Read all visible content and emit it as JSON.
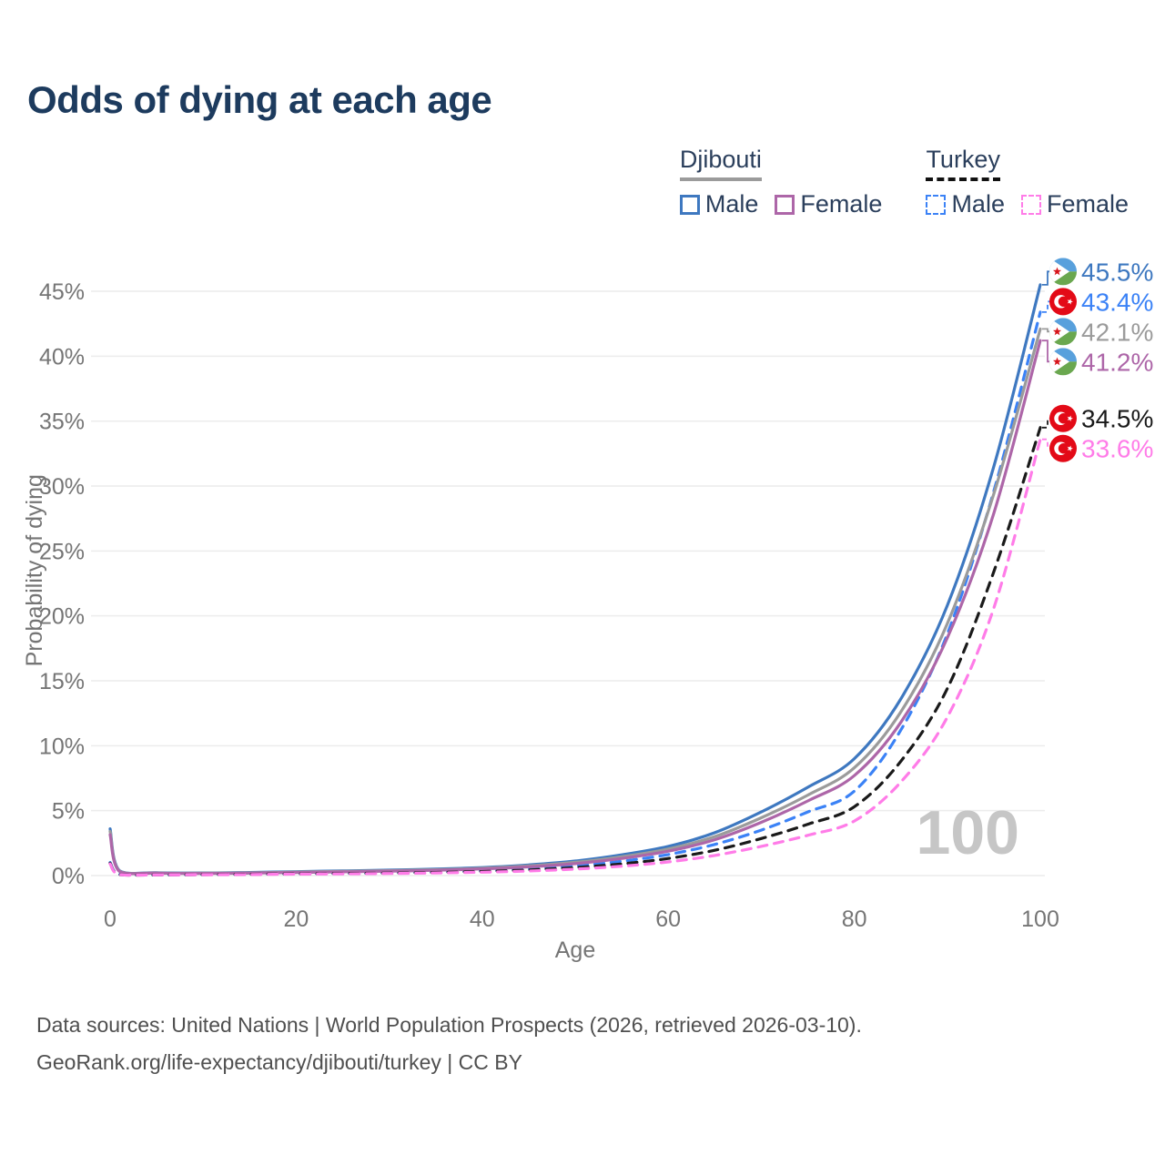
{
  "header": {
    "title": "Odds of dying at each age"
  },
  "watermark": "100",
  "legend": {
    "groups": [
      {
        "name": "Djibouti",
        "line_style": "solid",
        "underline_color": "#9b9b9b",
        "items": [
          {
            "label": "Male",
            "color": "#3e78c0",
            "dashed": false
          },
          {
            "label": "Female",
            "color": "#ad66a8",
            "dashed": false
          }
        ]
      },
      {
        "name": "Turkey",
        "line_style": "dashed",
        "underline_color": "#111111",
        "items": [
          {
            "label": "Male",
            "color": "#3b82f6",
            "dashed": true
          },
          {
            "label": "Female",
            "color": "#ff7ce8",
            "dashed": true
          }
        ]
      }
    ]
  },
  "chart_data": {
    "type": "line",
    "title": "Odds of dying at each age",
    "xlabel": "Age",
    "ylabel": "Probability of dying",
    "xlim": [
      0,
      100
    ],
    "ylim": [
      0,
      47
    ],
    "x_ticks": [
      0,
      20,
      40,
      60,
      80,
      100
    ],
    "y_tick_values": [
      0,
      5,
      10,
      15,
      20,
      25,
      30,
      35,
      40,
      45
    ],
    "y_tick_labels": [
      "0%",
      "5%",
      "10%",
      "15%",
      "20%",
      "25%",
      "30%",
      "35%",
      "40%",
      "45%"
    ],
    "grid": true,
    "legend_position": "top-right",
    "x": [
      0,
      1,
      5,
      10,
      15,
      20,
      25,
      30,
      35,
      40,
      45,
      50,
      55,
      60,
      65,
      70,
      75,
      80,
      85,
      90,
      95,
      100
    ],
    "series": [
      {
        "name": "Djibouti Male",
        "country": "Djibouti",
        "sex": "Male",
        "color": "#3e78c0",
        "dash": "solid",
        "flag": "djibouti",
        "end_label": "45.5%",
        "end_value": 45.5,
        "values": [
          3.6,
          0.38,
          0.22,
          0.2,
          0.24,
          0.3,
          0.36,
          0.42,
          0.5,
          0.62,
          0.82,
          1.12,
          1.6,
          2.25,
          3.3,
          4.9,
          6.8,
          9.0,
          13.6,
          20.8,
          31.5,
          45.5
        ]
      },
      {
        "name": "Turkey Male",
        "country": "Turkey",
        "sex": "Male",
        "color": "#3b82f6",
        "dash": "dashed",
        "flag": "turkey",
        "end_label": "43.4%",
        "end_value": 43.4,
        "values": [
          1.0,
          0.09,
          0.06,
          0.08,
          0.12,
          0.15,
          0.18,
          0.22,
          0.28,
          0.37,
          0.52,
          0.75,
          1.1,
          1.62,
          2.4,
          3.5,
          4.9,
          6.5,
          11.2,
          18.6,
          29.6,
          43.4
        ]
      },
      {
        "name": "Djibouti Both sexes",
        "country": "Djibouti",
        "sex": "Both",
        "color": "#9b9b9b",
        "dash": "solid",
        "flag": "djibouti",
        "end_label": "42.1%",
        "end_value": 42.1,
        "values": [
          3.4,
          0.35,
          0.2,
          0.18,
          0.21,
          0.27,
          0.32,
          0.38,
          0.45,
          0.56,
          0.74,
          1.02,
          1.45,
          2.05,
          3.0,
          4.45,
          6.2,
          8.3,
          12.6,
          19.4,
          29.4,
          42.1
        ]
      },
      {
        "name": "Djibouti Female",
        "country": "Djibouti",
        "sex": "Female",
        "color": "#ad66a8",
        "dash": "solid",
        "flag": "djibouti",
        "end_label": "41.2%",
        "end_value": 41.2,
        "values": [
          3.15,
          0.32,
          0.19,
          0.16,
          0.19,
          0.24,
          0.29,
          0.34,
          0.41,
          0.51,
          0.67,
          0.92,
          1.32,
          1.88,
          2.76,
          4.1,
          5.75,
          7.7,
          11.8,
          18.3,
          27.9,
          41.2
        ]
      },
      {
        "name": "Turkey Both sexes",
        "country": "Turkey",
        "sex": "Both",
        "color": "#1a1a1a",
        "dash": "dashed",
        "flag": "turkey",
        "end_label": "34.5%",
        "end_value": 34.5,
        "values": [
          0.95,
          0.08,
          0.05,
          0.07,
          0.1,
          0.13,
          0.16,
          0.19,
          0.24,
          0.31,
          0.43,
          0.62,
          0.9,
          1.32,
          1.95,
          2.85,
          3.95,
          5.3,
          8.8,
          14.4,
          23.4,
          34.5
        ]
      },
      {
        "name": "Turkey Female",
        "country": "Turkey",
        "sex": "Female",
        "color": "#ff7ce8",
        "dash": "dashed",
        "flag": "turkey",
        "end_label": "33.6%",
        "end_value": 33.6,
        "values": [
          0.9,
          0.07,
          0.05,
          0.06,
          0.08,
          0.11,
          0.13,
          0.16,
          0.2,
          0.26,
          0.35,
          0.5,
          0.72,
          1.05,
          1.55,
          2.25,
          3.1,
          4.2,
          7.2,
          12.2,
          20.6,
          33.6
        ]
      }
    ],
    "flag_colors": {
      "djibouti_blue": "#58a0dc",
      "djibouti_green": "#6aa74f",
      "djibouti_star": "#d7141a",
      "turkey_red": "#e30a17"
    }
  },
  "footer": {
    "line1": "Data sources: United Nations | World Population Prospects (2026, retrieved 2026-03-10).",
    "line2": "GeoRank.org/life-expectancy/djibouti/turkey | CC BY"
  }
}
